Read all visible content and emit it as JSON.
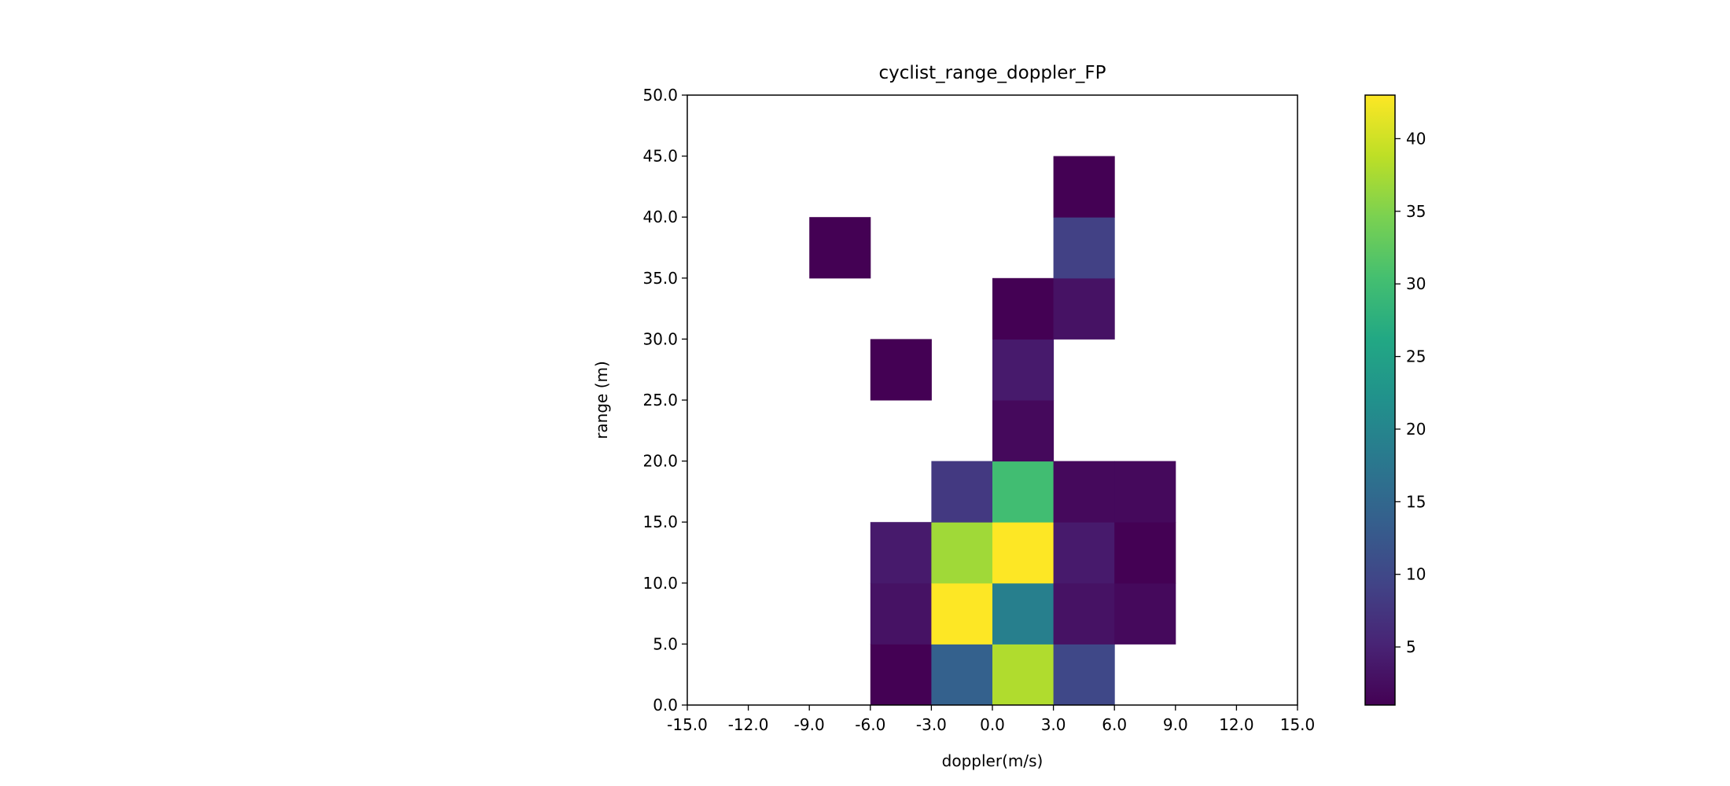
{
  "chart_data": {
    "type": "heatmap",
    "title": "cyclist_range_doppler_FP",
    "xlabel": "doppler(m/s)",
    "ylabel": "range (m)",
    "xlim": [
      -15,
      15
    ],
    "ylim": [
      0,
      50
    ],
    "x_bin_width": 3,
    "y_bin_width": 5,
    "x_ticks": [
      "-15.0",
      "-12.0",
      "-9.0",
      "-6.0",
      "-3.0",
      "0.0",
      "3.0",
      "6.0",
      "9.0",
      "12.0",
      "15.0"
    ],
    "y_ticks": [
      "0.0",
      "5.0",
      "10.0",
      "15.0",
      "20.0",
      "25.0",
      "30.0",
      "35.0",
      "40.0",
      "45.0",
      "50.0"
    ],
    "colormap": "viridis",
    "colorbar": {
      "min": 1,
      "max": 43,
      "ticks": [
        "5",
        "10",
        "15",
        "20",
        "25",
        "30",
        "35",
        "40"
      ]
    },
    "grid": false,
    "cells": [
      {
        "x": -9,
        "y": 35,
        "value": 1
      },
      {
        "x": -6,
        "y": 25,
        "value": 1
      },
      {
        "x": -6,
        "y": 0,
        "value": 1
      },
      {
        "x": -6,
        "y": 5,
        "value": 3
      },
      {
        "x": -6,
        "y": 10,
        "value": 4
      },
      {
        "x": -3,
        "y": 0,
        "value": 14
      },
      {
        "x": -3,
        "y": 5,
        "value": 43
      },
      {
        "x": -3,
        "y": 10,
        "value": 37
      },
      {
        "x": -3,
        "y": 15,
        "value": 8
      },
      {
        "x": 0,
        "y": 0,
        "value": 38
      },
      {
        "x": 0,
        "y": 5,
        "value": 19
      },
      {
        "x": 0,
        "y": 10,
        "value": 43
      },
      {
        "x": 0,
        "y": 15,
        "value": 30
      },
      {
        "x": 0,
        "y": 20,
        "value": 2
      },
      {
        "x": 0,
        "y": 25,
        "value": 4
      },
      {
        "x": 0,
        "y": 30,
        "value": 1
      },
      {
        "x": 3,
        "y": 0,
        "value": 10
      },
      {
        "x": 3,
        "y": 5,
        "value": 3
      },
      {
        "x": 3,
        "y": 10,
        "value": 4
      },
      {
        "x": 3,
        "y": 15,
        "value": 2
      },
      {
        "x": 3,
        "y": 30,
        "value": 3
      },
      {
        "x": 3,
        "y": 35,
        "value": 9
      },
      {
        "x": 3,
        "y": 40,
        "value": 1
      },
      {
        "x": 6,
        "y": 5,
        "value": 2
      },
      {
        "x": 6,
        "y": 10,
        "value": 1
      },
      {
        "x": 6,
        "y": 15,
        "value": 2
      }
    ]
  }
}
